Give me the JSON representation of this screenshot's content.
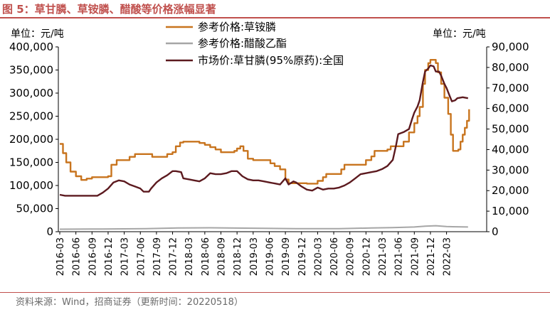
{
  "figure_title": "图 5：草甘膦、草铵膦、醋酸等价格涨幅显著",
  "source": "资料来源：Wind，招商证券（更新时间：20220518）",
  "chart_data": {
    "type": "line",
    "left_unit_label": "单位：元/吨",
    "right_unit_label": "单位：元/吨",
    "left_axis": {
      "min": 0,
      "max": 400000,
      "ticks": [
        "0",
        "50,000",
        "100,000",
        "150,000",
        "200,000",
        "250,000",
        "300,000",
        "350,000",
        "400,000"
      ]
    },
    "right_axis": {
      "min": 0,
      "max": 90000,
      "ticks": [
        "0",
        "10,000",
        "20,000",
        "30,000",
        "40,000",
        "50,000",
        "60,000",
        "70,000",
        "80,000",
        "90,000"
      ]
    },
    "x_range": [
      0,
      75
    ],
    "x_ticks": [
      {
        "x": 0,
        "label": "2016-03"
      },
      {
        "x": 3,
        "label": "2016-06"
      },
      {
        "x": 6,
        "label": "2016-09"
      },
      {
        "x": 9,
        "label": "2016-12"
      },
      {
        "x": 12,
        "label": "2017-03"
      },
      {
        "x": 15,
        "label": "2017-06"
      },
      {
        "x": 18,
        "label": "2017-09"
      },
      {
        "x": 21,
        "label": "2017-12"
      },
      {
        "x": 24,
        "label": "2018-03"
      },
      {
        "x": 27,
        "label": "2018-06"
      },
      {
        "x": 30,
        "label": "2018-09"
      },
      {
        "x": 33,
        "label": "2018-12"
      },
      {
        "x": 36,
        "label": "2019-03"
      },
      {
        "x": 39,
        "label": "2019-06"
      },
      {
        "x": 42,
        "label": "2019-09"
      },
      {
        "x": 45,
        "label": "2019-12"
      },
      {
        "x": 48,
        "label": "2020-03"
      },
      {
        "x": 51,
        "label": "2020-06"
      },
      {
        "x": 54,
        "label": "2020-09"
      },
      {
        "x": 57,
        "label": "2020-12"
      },
      {
        "x": 60,
        "label": "2021-03"
      },
      {
        "x": 63,
        "label": "2021-06"
      },
      {
        "x": 66,
        "label": "2021-09"
      },
      {
        "x": 69,
        "label": "2021-12"
      },
      {
        "x": 72,
        "label": "2022-03"
      }
    ],
    "series": [
      {
        "name": "参考价格:草铵膦",
        "axis": "left",
        "color": "#c8741e",
        "step": true,
        "points": [
          [
            0,
            190000
          ],
          [
            0.6,
            170000
          ],
          [
            1.2,
            150000
          ],
          [
            2,
            130000
          ],
          [
            3,
            120000
          ],
          [
            4,
            112000
          ],
          [
            5,
            115000
          ],
          [
            6,
            118000
          ],
          [
            8,
            118000
          ],
          [
            9,
            120000
          ],
          [
            9.6,
            145000
          ],
          [
            10.6,
            155000
          ],
          [
            12,
            155000
          ],
          [
            13,
            162000
          ],
          [
            14,
            168000
          ],
          [
            17,
            168000
          ],
          [
            17.2,
            162000
          ],
          [
            19.5,
            162000
          ],
          [
            20,
            168000
          ],
          [
            21,
            172000
          ],
          [
            21.6,
            185000
          ],
          [
            22.4,
            193000
          ],
          [
            23,
            195000
          ],
          [
            25,
            195000
          ],
          [
            26,
            192000
          ],
          [
            27,
            188000
          ],
          [
            28,
            183000
          ],
          [
            29,
            178000
          ],
          [
            30,
            172000
          ],
          [
            32,
            172000
          ],
          [
            32.5,
            175000
          ],
          [
            33,
            180000
          ],
          [
            33.6,
            185000
          ],
          [
            34.2,
            175000
          ],
          [
            35,
            158000
          ],
          [
            36,
            155000
          ],
          [
            38.5,
            155000
          ],
          [
            39.2,
            148000
          ],
          [
            40,
            142000
          ],
          [
            41,
            135000
          ],
          [
            42,
            113000
          ],
          [
            42.6,
            105000
          ],
          [
            45,
            105000
          ],
          [
            46,
            104000
          ],
          [
            47,
            104000
          ],
          [
            48,
            110000
          ],
          [
            49,
            118000
          ],
          [
            49.6,
            125000
          ],
          [
            52,
            125000
          ],
          [
            52.4,
            135000
          ],
          [
            53,
            145000
          ],
          [
            56,
            145000
          ],
          [
            57,
            155000
          ],
          [
            58,
            163000
          ],
          [
            58.6,
            175000
          ],
          [
            60,
            175000
          ],
          [
            61,
            178000
          ],
          [
            61.6,
            185000
          ],
          [
            63,
            185000
          ],
          [
            64,
            195000
          ],
          [
            65,
            215000
          ],
          [
            66,
            235000
          ],
          [
            66.6,
            250000
          ],
          [
            67,
            270000
          ],
          [
            67.6,
            320000
          ],
          [
            68,
            350000
          ],
          [
            68.6,
            365000
          ],
          [
            69,
            372000
          ],
          [
            69.6,
            372000
          ],
          [
            70,
            365000
          ],
          [
            70.4,
            345000
          ],
          [
            71,
            320000
          ],
          [
            71.6,
            290000
          ],
          [
            72.3,
            255000
          ],
          [
            72.8,
            210000
          ],
          [
            73.2,
            175000
          ],
          [
            74.2,
            178000
          ],
          [
            74.6,
            195000
          ],
          [
            75,
            210000
          ],
          [
            75.4,
            225000
          ],
          [
            75.8,
            240000
          ],
          [
            76.2,
            265000
          ]
        ]
      },
      {
        "name": "参考价格:醋酸乙酯",
        "axis": "right",
        "color": "#a6a6a6",
        "step": false,
        "points": [
          [
            0,
            1200
          ],
          [
            8,
            1300
          ],
          [
            16,
            1500
          ],
          [
            22,
            1800
          ],
          [
            28,
            1900
          ],
          [
            36,
            1700
          ],
          [
            44,
            1500
          ],
          [
            52,
            1500
          ],
          [
            58,
            1800
          ],
          [
            62,
            2000
          ],
          [
            66,
            2300
          ],
          [
            68,
            2700
          ],
          [
            70,
            2900
          ],
          [
            72,
            2500
          ],
          [
            74,
            2400
          ],
          [
            76,
            2300
          ]
        ]
      },
      {
        "name": "市场价:草甘膦(95%原药):全国",
        "axis": "right",
        "color": "#5c1a1f",
        "step": false,
        "points": [
          [
            0,
            18000
          ],
          [
            1,
            17500
          ],
          [
            3,
            17500
          ],
          [
            5,
            17500
          ],
          [
            7,
            17500
          ],
          [
            8,
            19000
          ],
          [
            9,
            21000
          ],
          [
            10,
            24000
          ],
          [
            11,
            25000
          ],
          [
            12,
            24500
          ],
          [
            13,
            23000
          ],
          [
            14,
            22000
          ],
          [
            15,
            21000
          ],
          [
            15.6,
            19500
          ],
          [
            16.6,
            19500
          ],
          [
            17,
            21000
          ],
          [
            18,
            24000
          ],
          [
            19,
            26000
          ],
          [
            20,
            27500
          ],
          [
            21,
            29500
          ],
          [
            21.6,
            29500
          ],
          [
            22.6,
            29000
          ],
          [
            23,
            26000
          ],
          [
            24,
            25500
          ],
          [
            25,
            25000
          ],
          [
            26,
            24500
          ],
          [
            27,
            26000
          ],
          [
            28,
            28500
          ],
          [
            29,
            28000
          ],
          [
            30,
            28000
          ],
          [
            31,
            28500
          ],
          [
            32,
            29500
          ],
          [
            33,
            29500
          ],
          [
            34,
            27000
          ],
          [
            35,
            25500
          ],
          [
            36,
            25000
          ],
          [
            37,
            25000
          ],
          [
            38,
            24500
          ],
          [
            39,
            24000
          ],
          [
            40,
            23500
          ],
          [
            41,
            23000
          ],
          [
            42,
            26000
          ],
          [
            42.6,
            23000
          ],
          [
            43.5,
            24500
          ],
          [
            44,
            24000
          ],
          [
            45,
            22000
          ],
          [
            46,
            20500
          ],
          [
            47,
            20000
          ],
          [
            48,
            21500
          ],
          [
            49,
            20500
          ],
          [
            50,
            21000
          ],
          [
            51,
            21000
          ],
          [
            52,
            21500
          ],
          [
            53,
            22500
          ],
          [
            54,
            24000
          ],
          [
            55,
            26000
          ],
          [
            56,
            28000
          ],
          [
            57,
            28500
          ],
          [
            58,
            29000
          ],
          [
            59,
            29500
          ],
          [
            60,
            30500
          ],
          [
            61,
            32000
          ],
          [
            62,
            35000
          ],
          [
            62.6,
            42000
          ],
          [
            63,
            47500
          ],
          [
            64,
            48500
          ],
          [
            65,
            50000
          ],
          [
            65.6,
            55000
          ],
          [
            66,
            58000
          ],
          [
            66.6,
            61000
          ],
          [
            67,
            64000
          ],
          [
            67.6,
            73000
          ],
          [
            68,
            78000
          ],
          [
            68.6,
            79500
          ],
          [
            69,
            81000
          ],
          [
            69.6,
            80500
          ],
          [
            70,
            78000
          ],
          [
            70.6,
            78000
          ],
          [
            71,
            76000
          ],
          [
            71.6,
            72000
          ],
          [
            72,
            70000
          ],
          [
            72.6,
            66000
          ],
          [
            73,
            63500
          ],
          [
            73.6,
            64000
          ],
          [
            74,
            65000
          ],
          [
            75,
            65500
          ],
          [
            76,
            65000
          ]
        ]
      }
    ]
  }
}
